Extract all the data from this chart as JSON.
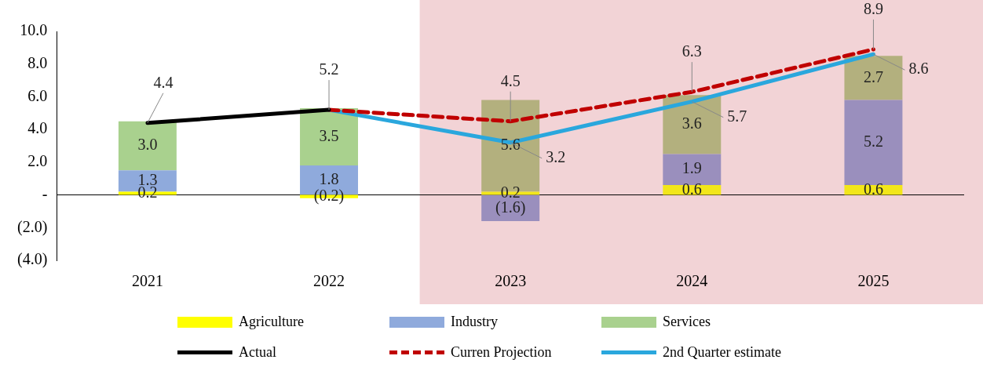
{
  "chart_data": {
    "type": "bar",
    "stacked": true,
    "categories": [
      "2021",
      "2022",
      "2023",
      "2024",
      "2025"
    ],
    "ylim": [
      -4,
      10
    ],
    "yticks": [
      {
        "value": -4,
        "label": "(4.0)"
      },
      {
        "value": -2,
        "label": "(2.0)"
      },
      {
        "value": 0,
        "label": "-"
      },
      {
        "value": 2,
        "label": "2.0"
      },
      {
        "value": 4,
        "label": "4.0"
      },
      {
        "value": 6,
        "label": "6.0"
      },
      {
        "value": 8,
        "label": "8.0"
      },
      {
        "value": 10,
        "label": "10.0"
      }
    ],
    "grid": false,
    "legend": "bottom",
    "marker": "none",
    "ref_lines": [
      {
        "axis": "y",
        "value": 0,
        "color": "#000000"
      }
    ],
    "bands": [
      {
        "axis": "x",
        "from": "2023",
        "to": "2025",
        "color": "#f2d3d6"
      }
    ],
    "series": [
      {
        "name": "Agriculture",
        "color": "#ffff00",
        "colors": [
          "#ffff00",
          "#ffff00",
          "#f2e61a",
          "#f2e61a",
          "#f2e61a"
        ],
        "values": [
          0.2,
          -0.2,
          0.2,
          0.6,
          0.6
        ],
        "value_labels": [
          "0.2",
          "(0.2)",
          "0.2",
          "0.6",
          "0.6"
        ]
      },
      {
        "name": "Industry",
        "color": "#8faadc",
        "colors": [
          "#8faadc",
          "#8faadc",
          "#9a8fbd",
          "#9a8fbd",
          "#9a8fbd"
        ],
        "values": [
          1.3,
          1.8,
          -1.6,
          1.9,
          5.2
        ],
        "value_labels": [
          "1.3",
          "1.8",
          "(1.6)",
          "1.9",
          "5.2"
        ]
      },
      {
        "name": "Services",
        "color": "#a9d18e",
        "colors": [
          "#a9d18e",
          "#a9d18e",
          "#b3b07e",
          "#b3b07e",
          "#b3b07e"
        ],
        "values": [
          3.0,
          3.5,
          5.6,
          3.6,
          2.7
        ],
        "value_labels": [
          "3.0",
          "3.5",
          "5.6",
          "3.6",
          "2.7"
        ]
      },
      {
        "name": "Actual",
        "type": "line",
        "color": "#000000",
        "line_style": "solid",
        "values": [
          4.4,
          5.2,
          null,
          null,
          null
        ],
        "value_labels": [
          "4.4",
          "5.2",
          null,
          null,
          null
        ]
      },
      {
        "name": "Curren Projection",
        "type": "line",
        "color": "#c00000",
        "line_style": "dashed",
        "values": [
          null,
          5.2,
          4.5,
          6.3,
          8.9
        ],
        "value_labels": [
          null,
          null,
          "4.5",
          "6.3",
          "8.9"
        ]
      },
      {
        "name": "2nd Quarter estimate",
        "type": "line",
        "color": "#2aa7dd",
        "line_style": "solid",
        "values": [
          null,
          5.2,
          3.2,
          5.7,
          8.6
        ],
        "value_labels": [
          null,
          null,
          "3.2",
          "5.7",
          "8.6"
        ]
      }
    ]
  }
}
